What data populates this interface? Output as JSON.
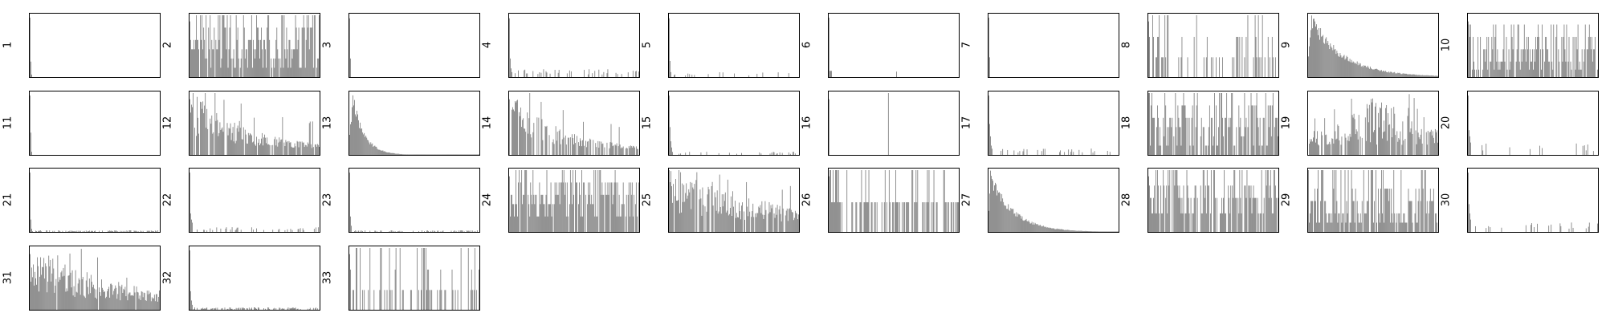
{
  "bar_color": "#808080",
  "chart_data": [
    {
      "type": "bar",
      "label": "1",
      "shape": "spike",
      "seed": 1,
      "mass": [
        0.96,
        0.25,
        0.04
      ]
    },
    {
      "type": "bar",
      "label": "2",
      "shape": "sparse",
      "seed": 2,
      "density": 0.92,
      "pattern": "levels",
      "levels": [
        0.15,
        0.3,
        0.45,
        0.6,
        0.8,
        1.0
      ]
    },
    {
      "type": "bar",
      "label": "3",
      "shape": "spike",
      "seed": 3,
      "mass": [
        0.95,
        0.3
      ]
    },
    {
      "type": "bar",
      "label": "4",
      "shape": "spike",
      "seed": 4,
      "mass": [
        0.95,
        0.3,
        0.14,
        0.08
      ],
      "tail": 0.22,
      "tailH": 0.1
    },
    {
      "type": "bar",
      "label": "5",
      "shape": "spike",
      "seed": 5,
      "mass": [
        0.95,
        0.26,
        0.08
      ],
      "tail": 0.1,
      "tailH": 0.06
    },
    {
      "type": "bar",
      "label": "6",
      "shape": "spike",
      "seed": 6,
      "mass": [
        0.96,
        0.1,
        0.1,
        0.1
      ],
      "tail": 0.01,
      "tailH": 0.1
    },
    {
      "type": "bar",
      "label": "7",
      "shape": "spike",
      "seed": 7,
      "mass": [
        0.96,
        0.32
      ]
    },
    {
      "type": "bar",
      "label": "8",
      "shape": "sparse",
      "seed": 8,
      "density": 0.3,
      "pattern": "levels",
      "levels": [
        0.32,
        0.32,
        0.32,
        0.65,
        1.0
      ]
    },
    {
      "type": "bar",
      "label": "9",
      "shape": "decay",
      "seed": 9,
      "peak": 4,
      "decay": 40
    },
    {
      "type": "bar",
      "label": "10",
      "shape": "sparse",
      "seed": 10,
      "density": 0.85,
      "pattern": "levels",
      "levels": [
        0.12,
        0.25,
        0.45,
        0.65,
        0.85
      ]
    },
    {
      "type": "bar",
      "label": "11",
      "shape": "spike",
      "seed": 11,
      "mass": [
        0.96,
        0.36,
        0.05
      ]
    },
    {
      "type": "bar",
      "label": "12",
      "shape": "sparse",
      "seed": 12,
      "density": 0.9,
      "pattern": "decay",
      "decay": 70
    },
    {
      "type": "bar",
      "label": "13",
      "shape": "decay",
      "seed": 13,
      "peak": 4,
      "decay": 14
    },
    {
      "type": "bar",
      "label": "14",
      "shape": "sparse",
      "seed": 14,
      "density": 0.75,
      "pattern": "decay",
      "decay": 60
    },
    {
      "type": "bar",
      "label": "15",
      "shape": "spike",
      "seed": 15,
      "mass": [
        0.96,
        0.45,
        0.22,
        0.12
      ],
      "tail": 0.12,
      "tailH": 0.04
    },
    {
      "type": "bar",
      "label": "16",
      "shape": "sparse",
      "seed": 16,
      "density": 0.025,
      "pattern": "levels",
      "levels": [
        1.0
      ]
    },
    {
      "type": "bar",
      "label": "17",
      "shape": "spike",
      "seed": 17,
      "mass": [
        0.96,
        0.5,
        0.3,
        0.15,
        0.1
      ],
      "tail": 0.15,
      "tailH": 0.08
    },
    {
      "type": "bar",
      "label": "18",
      "shape": "sparse",
      "seed": 18,
      "density": 0.8,
      "pattern": "levels",
      "levels": [
        0.15,
        0.3,
        0.45,
        0.6,
        0.8,
        1.0
      ]
    },
    {
      "type": "bar",
      "label": "19",
      "shape": "sparse",
      "seed": 19,
      "density": 0.82,
      "pattern": "hump",
      "center": 0.55,
      "width": 0.25
    },
    {
      "type": "bar",
      "label": "20",
      "shape": "spike",
      "seed": 20,
      "mass": [
        0.96,
        0.4,
        0.3,
        0.2
      ],
      "tail": 0.08,
      "tailH": 0.15
    },
    {
      "type": "bar",
      "label": "21",
      "shape": "spike",
      "seed": 21,
      "mass": [
        0.96,
        0.2,
        0.05
      ],
      "tail": 0.45,
      "tailH": 0.02
    },
    {
      "type": "bar",
      "label": "22",
      "shape": "spike",
      "seed": 22,
      "mass": [
        0.96,
        0.3,
        0.2,
        0.15
      ],
      "tail": 0.3,
      "tailH": 0.06
    },
    {
      "type": "bar",
      "label": "23",
      "shape": "spike",
      "seed": 23,
      "mass": [
        0.96,
        0.25,
        0.1
      ],
      "tail": 0.35,
      "tailH": 0.02
    },
    {
      "type": "bar",
      "label": "24",
      "shape": "sparse",
      "seed": 24,
      "density": 0.85,
      "pattern": "levels",
      "levels": [
        0.25,
        0.45,
        0.6,
        0.8,
        1.0
      ]
    },
    {
      "type": "bar",
      "label": "25",
      "shape": "sparse",
      "seed": 25,
      "density": 0.92,
      "pattern": "decay",
      "decay": 150
    },
    {
      "type": "bar",
      "label": "26",
      "shape": "sparse",
      "seed": 26,
      "density": 0.5,
      "pattern": "levels",
      "levels": [
        0.48,
        0.48,
        0.48,
        1.0
      ]
    },
    {
      "type": "bar",
      "label": "27",
      "shape": "decay",
      "seed": 27,
      "peak": 2,
      "decay": 28
    },
    {
      "type": "bar",
      "label": "28",
      "shape": "sparse",
      "seed": 28,
      "density": 0.75,
      "pattern": "levels",
      "levels": [
        0.3,
        0.55,
        0.75,
        1.0
      ]
    },
    {
      "type": "bar",
      "label": "29",
      "shape": "sparse",
      "seed": 29,
      "density": 0.8,
      "pattern": "levels",
      "levels": [
        0.15,
        0.3,
        0.5,
        0.7,
        1.0
      ]
    },
    {
      "type": "bar",
      "label": "30",
      "shape": "spike",
      "seed": 30,
      "mass": [
        0.96,
        0.45,
        0.3,
        0.2
      ],
      "tail": 0.15,
      "tailH": 0.12
    },
    {
      "type": "bar",
      "label": "31",
      "shape": "sparse",
      "seed": 31,
      "density": 0.95,
      "pattern": "decay",
      "decay": 110
    },
    {
      "type": "bar",
      "label": "32",
      "shape": "spike",
      "seed": 32,
      "mass": [
        0.96,
        0.3,
        0.15,
        0.08
      ],
      "tail": 0.5,
      "tailH": 0.03
    },
    {
      "type": "bar",
      "label": "33",
      "shape": "sparse",
      "seed": 33,
      "density": 0.35,
      "pattern": "levels",
      "levels": [
        0.32,
        0.32,
        0.32,
        0.65,
        1.0
      ]
    }
  ]
}
